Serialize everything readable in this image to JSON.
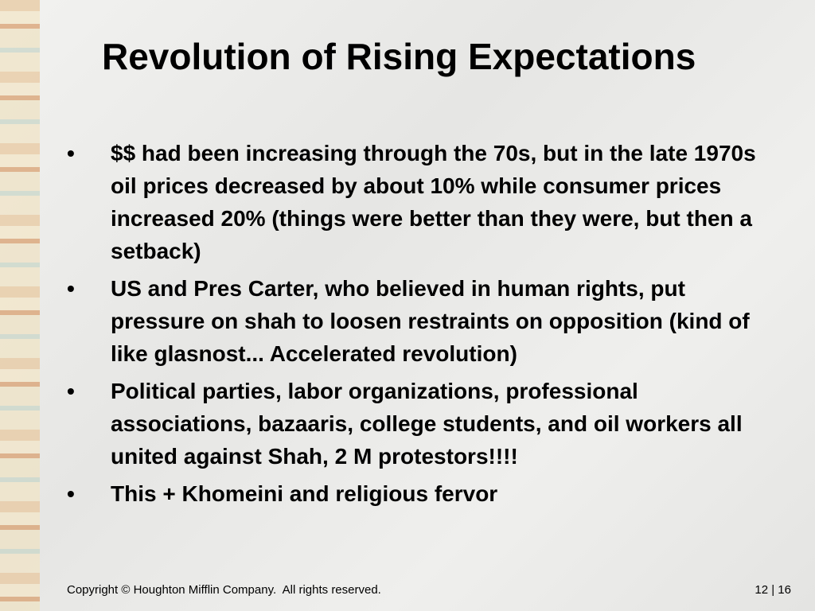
{
  "title": "Revolution of Rising Expectations",
  "bullets": [
    "$$ had been increasing through the 70s, but in the late 1970s oil prices decreased by about 10% while consumer prices increased 20% (things were better than they were, but then a setback)",
    "US and Pres Carter, who believed in human rights, put pressure on shah to loosen restraints on opposition (kind of like glasnost... Accelerated revolution)",
    "Political parties, labor organizations, professional associations, bazaaris, college students, and oil workers all united against Shah, 2 M protestors!!!!",
    "This + Khomeini and religious fervor"
  ],
  "bullet_symbol": "•",
  "footer": {
    "copyright": "Copyright © Houghton Mifflin Company.  All rights reserved.",
    "page": "12 | 16"
  }
}
